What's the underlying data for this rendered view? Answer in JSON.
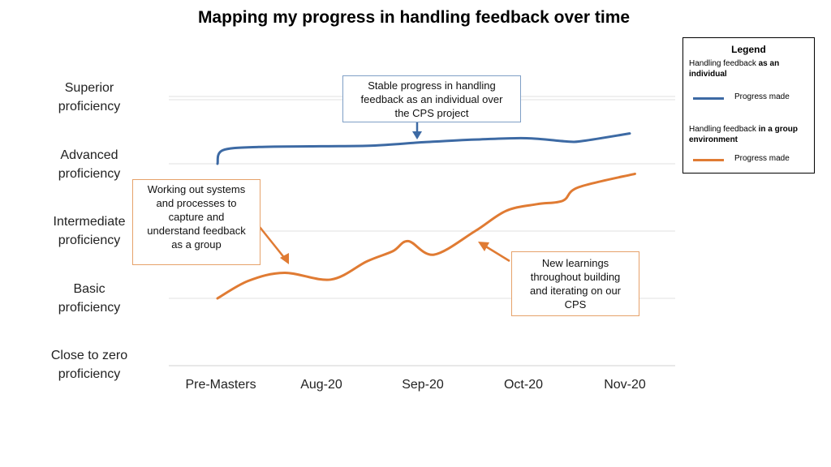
{
  "chart_data": {
    "type": "line",
    "title": "Mapping my progress in handling feedback over time",
    "categories": [
      "Pre-Masters",
      "Aug-20",
      "Sep-20",
      "Oct-20",
      "Nov-20"
    ],
    "y_levels": [
      "Close to zero proficiency",
      "Basic proficiency",
      "Intermediate proficiency",
      "Advanced proficiency",
      "Superior proficiency"
    ],
    "y_level_lines": [
      [
        "Close to zero",
        "proficiency"
      ],
      [
        "Basic",
        "proficiency"
      ],
      [
        "Intermediate",
        "proficiency"
      ],
      [
        "Advanced",
        "proficiency"
      ],
      [
        "Superior",
        "proficiency"
      ]
    ],
    "ylim": [
      0,
      4.2
    ],
    "grid": true,
    "series": [
      {
        "color": "#3d6aa4",
        "x": [
          0,
          0.05,
          0.4,
          1.0,
          1.5,
          2.0,
          2.5,
          3.0,
          3.4,
          3.55,
          4.0
        ],
        "y": [
          3.0,
          3.2,
          3.25,
          3.26,
          3.27,
          3.32,
          3.36,
          3.38,
          3.33,
          3.34,
          3.45
        ]
      },
      {
        "color": "#e07b33",
        "x": [
          0,
          0.3,
          0.65,
          1.1,
          1.45,
          1.7,
          1.85,
          2.1,
          2.5,
          2.8,
          3.1,
          3.35,
          3.5,
          4.05
        ],
        "y": [
          1.0,
          1.26,
          1.38,
          1.28,
          1.55,
          1.7,
          1.85,
          1.65,
          2.0,
          2.3,
          2.4,
          2.45,
          2.65,
          2.85
        ]
      }
    ],
    "annotations": [
      {
        "id": "blue-note",
        "lines": [
          "Stable progress in handling",
          "feedback as an individual over",
          "the CPS project"
        ]
      },
      {
        "id": "orange-note-left",
        "lines": [
          "Working out systems",
          "and processes to",
          "capture and",
          "understand feedback",
          "as a group"
        ]
      },
      {
        "id": "orange-note-right",
        "lines": [
          "New learnings",
          "throughout building",
          "and iterating on our",
          "CPS"
        ]
      }
    ],
    "legend": {
      "position": "top-right",
      "title": "Legend",
      "entries": [
        {
          "prefix": "Handling feedback ",
          "bold": "as an individual",
          "label": "Progress made",
          "color": "#3d6aa4"
        },
        {
          "prefix": "Handling feedback ",
          "bold": "in a group environment",
          "label": "Progress made",
          "color": "#e07b33"
        }
      ]
    }
  }
}
